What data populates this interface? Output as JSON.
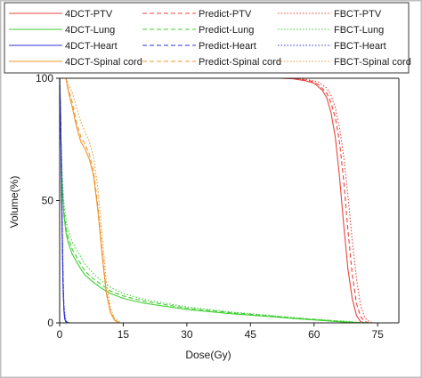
{
  "chart_data": {
    "type": "line",
    "xlabel": "Dose(Gy)",
    "ylabel": "Volume(%)",
    "xlim": [
      0,
      80
    ],
    "ylim": [
      0,
      100
    ],
    "x_ticks": [
      "0",
      "15",
      "30",
      "45",
      "60",
      "75"
    ],
    "x_tick_values": [
      0,
      15,
      30,
      45,
      60,
      75
    ],
    "y_ticks": [
      "0",
      "50",
      "100"
    ],
    "y_tick_values": [
      0,
      50,
      100
    ],
    "grid": false,
    "legend_position": "top",
    "series": [
      {
        "name": "4DCT-PTV",
        "color": "#e8453c",
        "dash": "solid",
        "x": [
          0,
          50,
          52,
          55,
          58,
          60,
          62,
          63,
          64,
          65,
          66,
          67,
          68,
          69,
          70,
          71,
          72
        ],
        "y": [
          100,
          100,
          100,
          99.8,
          99,
          98,
          95,
          92,
          86,
          76,
          60,
          40,
          22,
          10,
          3,
          0.5,
          0
        ]
      },
      {
        "name": "Predict-PTV",
        "color": "#e8453c",
        "dash": "dashed",
        "x": [
          0,
          50,
          53,
          56,
          59,
          61,
          63,
          64,
          65,
          66,
          67,
          68,
          69,
          70,
          71,
          72,
          73
        ],
        "y": [
          100,
          100,
          100,
          99.8,
          99,
          97.5,
          94,
          90,
          84,
          74,
          58,
          38,
          20,
          8,
          2.5,
          0.5,
          0
        ]
      },
      {
        "name": "FBCT-PTV",
        "color": "#e8453c",
        "dash": "dotted",
        "x": [
          0,
          52,
          55,
          58,
          61,
          63,
          64,
          65,
          66,
          67,
          68,
          69,
          70,
          71,
          72,
          73,
          74
        ],
        "y": [
          100,
          100,
          100,
          99.6,
          98.5,
          96,
          93,
          88,
          80,
          68,
          52,
          34,
          18,
          7,
          2,
          0.5,
          0
        ]
      },
      {
        "name": "4DCT-Lung",
        "color": "#3fcf2f",
        "dash": "solid",
        "x": [
          0,
          0.3,
          0.6,
          1,
          1.5,
          2,
          3,
          4,
          5,
          6,
          8,
          10,
          12,
          15,
          20,
          30,
          40,
          50,
          55,
          60,
          65,
          70,
          72
        ],
        "y": [
          100,
          75,
          55,
          44,
          37,
          33,
          28,
          25,
          22,
          19.5,
          16.5,
          14,
          12,
          10,
          8,
          5.5,
          3.8,
          2.5,
          1.8,
          1.2,
          0.6,
          0.1,
          0
        ]
      },
      {
        "name": "Predict-Lung",
        "color": "#3fcf2f",
        "dash": "dashed",
        "x": [
          0,
          0.3,
          0.6,
          1,
          1.5,
          2,
          3,
          4,
          5,
          6,
          8,
          10,
          12,
          15,
          20,
          30,
          40,
          50,
          55,
          60,
          65,
          70,
          73
        ],
        "y": [
          100,
          76,
          57,
          46,
          39,
          35,
          30,
          27,
          24,
          21,
          18,
          15.5,
          13,
          11,
          8.8,
          6,
          4.2,
          2.8,
          2,
          1.4,
          0.8,
          0.2,
          0
        ]
      },
      {
        "name": "FBCT-Lung",
        "color": "#3fcf2f",
        "dash": "dotted",
        "x": [
          0,
          0.3,
          0.6,
          1,
          1.5,
          2,
          3,
          4,
          5,
          6,
          8,
          10,
          12,
          15,
          20,
          30,
          40,
          50,
          55,
          60,
          65,
          70,
          74
        ],
        "y": [
          100,
          78,
          60,
          49,
          42,
          38,
          33,
          30,
          27,
          24,
          20,
          17,
          14.5,
          12,
          9.5,
          6.5,
          4.5,
          3,
          2.2,
          1.5,
          0.9,
          0.3,
          0
        ]
      },
      {
        "name": "4DCT-Heart",
        "color": "#3030d8",
        "dash": "solid",
        "x": [
          0,
          0.2,
          0.4,
          0.6,
          0.8,
          1,
          1.2,
          1.5,
          2,
          80
        ],
        "y": [
          100,
          85,
          60,
          35,
          15,
          5,
          1.5,
          0.3,
          0,
          0
        ]
      },
      {
        "name": "Predict-Heart",
        "color": "#3030d8",
        "dash": "dashed",
        "x": [
          0,
          0.2,
          0.4,
          0.6,
          0.8,
          1,
          1.2,
          1.5,
          2,
          2.3
        ],
        "y": [
          100,
          86,
          62,
          38,
          18,
          6,
          2,
          0.5,
          0.1,
          0
        ]
      },
      {
        "name": "FBCT-Heart",
        "color": "#3030d8",
        "dash": "dotted",
        "x": [
          0,
          0.2,
          0.4,
          0.6,
          0.8,
          1,
          1.3,
          1.6,
          2,
          2.5
        ],
        "y": [
          100,
          87,
          65,
          40,
          20,
          7,
          2.5,
          0.6,
          0.1,
          0
        ]
      },
      {
        "name": "4DCT-Spinal cord",
        "color": "#f0962e",
        "dash": "solid",
        "x": [
          1.5,
          2,
          3,
          4,
          5,
          6,
          7,
          8,
          9,
          10,
          11,
          12,
          13,
          14
        ],
        "y": [
          100,
          95,
          88,
          80,
          74,
          71,
          67,
          60,
          46,
          28,
          12,
          4,
          1,
          0
        ]
      },
      {
        "name": "Predict-Spinal cord",
        "color": "#f0962e",
        "dash": "dashed",
        "x": [
          1.5,
          2,
          3,
          4,
          5,
          6,
          7,
          8,
          9,
          10,
          11,
          12,
          13,
          14
        ],
        "y": [
          100,
          96,
          90,
          82,
          76,
          73,
          69,
          62,
          48,
          30,
          13,
          4.5,
          1.2,
          0
        ]
      },
      {
        "name": "FBCT-Spinal cord",
        "color": "#f0962e",
        "dash": "dotted",
        "x": [
          1.5,
          2,
          3,
          4,
          5,
          6,
          7,
          8,
          9,
          10,
          11,
          12,
          13,
          14.5
        ],
        "y": [
          100,
          98,
          94,
          88,
          82,
          78,
          74,
          68,
          55,
          36,
          17,
          6,
          1.5,
          0
        ]
      }
    ]
  }
}
